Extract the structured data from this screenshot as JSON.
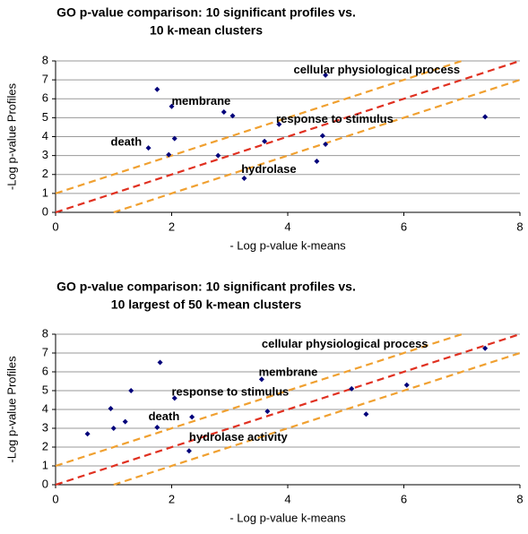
{
  "chart_data": [
    {
      "type": "scatter",
      "title": [
        "GO p-value comparison: 10 significant profiles vs.",
        "10 k-mean clusters"
      ],
      "x_label": "- Log p-value k-means",
      "y_label": "-Log p-value Profiles",
      "xlim": [
        0,
        8
      ],
      "ylim": [
        0,
        8
      ],
      "xticks": [
        0,
        2,
        4,
        6,
        8
      ],
      "yticks": [
        0,
        1,
        2,
        3,
        4,
        5,
        6,
        7,
        8
      ],
      "grid": true,
      "series": [
        {
          "color": "#00007a",
          "x": [
            1.75,
            2.0,
            2.05,
            1.6,
            1.95,
            2.9,
            3.05,
            2.8,
            3.25,
            3.6,
            3.85,
            4.65,
            4.6,
            4.65,
            4.5,
            7.4
          ],
          "values": [
            6.5,
            5.6,
            3.9,
            3.4,
            3.05,
            5.3,
            5.1,
            3.0,
            1.8,
            3.75,
            4.65,
            7.25,
            4.05,
            3.6,
            2.7,
            5.05
          ]
        }
      ],
      "reference_lines": [
        {
          "slope": 1,
          "intercept": 1,
          "color": "#f0a030"
        },
        {
          "slope": 1,
          "intercept": 0,
          "color": "#e03020"
        },
        {
          "slope": 1,
          "intercept": -1,
          "color": "#f0a030"
        }
      ],
      "annotations": [
        {
          "text": "cellular physiological process",
          "x": 4.1,
          "y": 7.5
        },
        {
          "text": "membrane",
          "x": 2.0,
          "y": 5.85
        },
        {
          "text": "response to stimulus",
          "x": 3.8,
          "y": 4.9
        },
        {
          "text": "death",
          "x": 0.95,
          "y": 3.7
        },
        {
          "text": "hydrolase",
          "x": 3.2,
          "y": 2.25
        }
      ]
    },
    {
      "type": "scatter",
      "title": [
        "GO p-value comparison: 10 significant profiles vs.",
        "10 largest of 50 k-mean clusters"
      ],
      "x_label": "- Log p-value k-means",
      "y_label": "-Log p-value Profiles",
      "xlim": [
        0,
        8
      ],
      "ylim": [
        0,
        8
      ],
      "xticks": [
        0,
        2,
        4,
        6,
        8
      ],
      "yticks": [
        0,
        1,
        2,
        3,
        4,
        5,
        6,
        7,
        8
      ],
      "grid": true,
      "series": [
        {
          "color": "#00007a",
          "x": [
            0.55,
            0.95,
            1.0,
            1.2,
            1.3,
            1.8,
            1.75,
            2.05,
            2.35,
            2.3,
            3.55,
            3.65,
            5.1,
            5.35,
            6.05,
            7.4
          ],
          "values": [
            2.7,
            4.05,
            3.0,
            3.35,
            5.0,
            6.5,
            3.05,
            4.6,
            3.6,
            1.8,
            5.6,
            3.9,
            5.1,
            3.75,
            5.3,
            7.25
          ]
        }
      ],
      "reference_lines": [
        {
          "slope": 1,
          "intercept": 1,
          "color": "#f0a030"
        },
        {
          "slope": 1,
          "intercept": 0,
          "color": "#e03020"
        },
        {
          "slope": 1,
          "intercept": -1,
          "color": "#f0a030"
        }
      ],
      "annotations": [
        {
          "text": "cellular physiological process",
          "x": 3.55,
          "y": 7.45
        },
        {
          "text": "membrane",
          "x": 3.5,
          "y": 5.95
        },
        {
          "text": "response to stimulus",
          "x": 2.0,
          "y": 4.9
        },
        {
          "text": "death",
          "x": 1.6,
          "y": 3.6
        },
        {
          "text": "hydrolase activity",
          "x": 2.3,
          "y": 2.5
        }
      ]
    }
  ]
}
